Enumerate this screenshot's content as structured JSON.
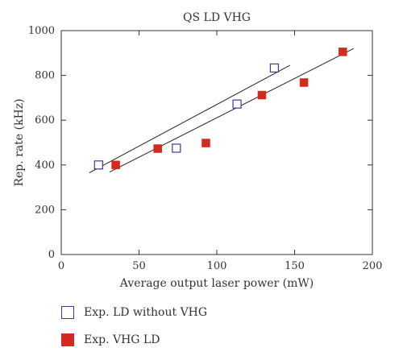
{
  "chart_data": {
    "type": "scatter",
    "title": "QS LD VHG",
    "xlabel": "Average output laser power (mW)",
    "ylabel": "Rep. rate (kHz)",
    "xlim": [
      0,
      200
    ],
    "ylim": [
      0,
      1000
    ],
    "xticks": [
      "0",
      "50",
      "100",
      "150",
      "200"
    ],
    "yticks": [
      "0",
      "200",
      "400",
      "600",
      "800",
      "1000"
    ],
    "grid": false,
    "legend_position": "bottom",
    "series": [
      {
        "name": "Exp. LD without VHG",
        "marker": "open-square",
        "color": "#3a3aa0",
        "x": [
          24,
          74,
          113,
          137
        ],
        "y": [
          400,
          475,
          672,
          833
        ],
        "fit_line": {
          "x": [
            18,
            147
          ],
          "y": [
            365,
            845
          ]
        }
      },
      {
        "name": "Exp. VHG LD",
        "marker": "filled-square",
        "color": "#d42a1e",
        "x": [
          35,
          62,
          93,
          129,
          156,
          181
        ],
        "y": [
          400,
          473,
          498,
          712,
          768,
          905
        ],
        "fit_line": {
          "x": [
            31,
            188
          ],
          "y": [
            368,
            920
          ]
        }
      }
    ]
  }
}
